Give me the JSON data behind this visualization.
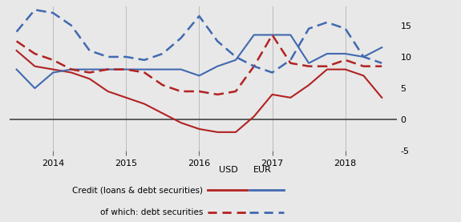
{
  "x_values": [
    2013.5,
    2013.75,
    2014.0,
    2014.25,
    2014.5,
    2014.75,
    2015.0,
    2015.25,
    2015.5,
    2015.75,
    2016.0,
    2016.25,
    2016.5,
    2016.75,
    2017.0,
    2017.25,
    2017.5,
    2017.75,
    2018.0,
    2018.25,
    2018.5
  ],
  "usd_credit": [
    11.0,
    8.5,
    8.0,
    7.5,
    6.5,
    4.5,
    3.5,
    2.5,
    1.0,
    -0.5,
    -1.5,
    -2.0,
    -2.0,
    0.5,
    4.0,
    3.5,
    5.5,
    8.0,
    8.0,
    7.0,
    3.5
  ],
  "eur_credit": [
    8.0,
    5.0,
    7.5,
    8.0,
    8.0,
    8.0,
    8.0,
    8.0,
    8.0,
    8.0,
    7.0,
    8.5,
    9.5,
    13.5,
    13.5,
    13.5,
    9.0,
    10.5,
    10.5,
    10.0,
    11.5
  ],
  "usd_debt": [
    12.5,
    10.5,
    9.5,
    8.0,
    7.5,
    8.0,
    8.0,
    7.5,
    5.5,
    4.5,
    4.5,
    4.0,
    4.5,
    8.5,
    13.5,
    9.0,
    8.5,
    8.5,
    9.5,
    8.5,
    8.5
  ],
  "eur_debt": [
    14.0,
    17.5,
    17.0,
    15.0,
    11.0,
    10.0,
    10.0,
    9.5,
    10.5,
    13.0,
    16.5,
    12.5,
    10.0,
    8.5,
    7.5,
    9.5,
    14.5,
    15.5,
    14.5,
    10.0,
    9.0
  ],
  "usd_color": "#b22222",
  "eur_color": "#4169b0",
  "ylim": [
    -5,
    18
  ],
  "yticks": [
    -5,
    0,
    5,
    10,
    15
  ],
  "xlim": [
    2013.4,
    2018.7
  ],
  "xticks": [
    2014,
    2015,
    2016,
    2017,
    2018
  ],
  "bg_color": "#e8e8e8",
  "zero_line_color": "#444444",
  "legend_label1": "Credit (loans & debt securities)",
  "legend_label2": "of which: debt securities",
  "legend_usd": "USD",
  "legend_eur": "EUR"
}
